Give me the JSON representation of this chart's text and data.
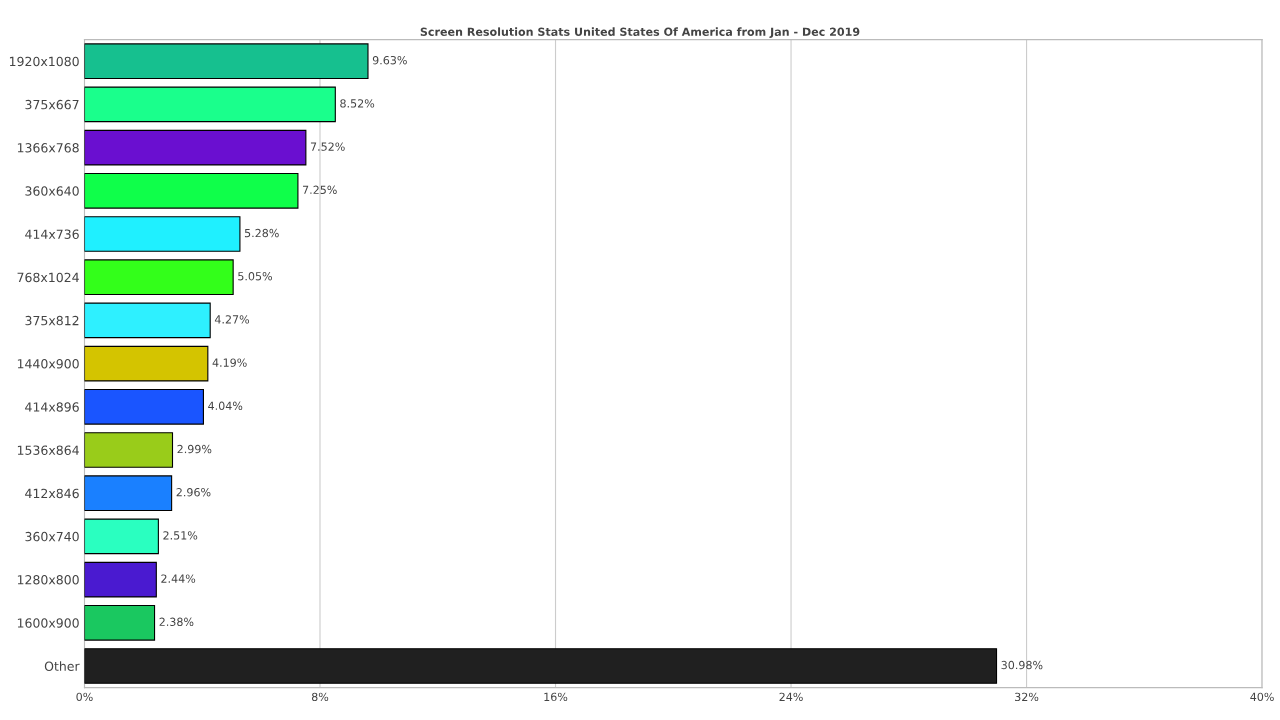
{
  "chart_data": {
    "type": "bar",
    "orientation": "horizontal",
    "subtitle": "Screen Resolution Stats United States Of America from Jan - Dec 2019",
    "categories": [
      "1920x1080",
      "375x667",
      "1366x768",
      "360x640",
      "414x736",
      "768x1024",
      "375x812",
      "1440x900",
      "414x896",
      "1536x864",
      "412x846",
      "360x740",
      "1280x800",
      "1600x900",
      "Other"
    ],
    "values": [
      9.63,
      8.52,
      7.52,
      7.25,
      5.28,
      5.05,
      4.27,
      4.19,
      4.04,
      2.99,
      2.96,
      2.51,
      2.44,
      2.38,
      30.98
    ],
    "value_labels": [
      "9.63%",
      "8.52%",
      "7.52%",
      "7.25%",
      "5.28%",
      "5.05%",
      "4.27%",
      "4.19%",
      "4.04%",
      "2.99%",
      "2.96%",
      "2.51%",
      "2.44%",
      "2.38%",
      "30.98%"
    ],
    "colors": [
      "#16c08f",
      "#1aff8c",
      "#6a0fd0",
      "#0fff4a",
      "#1ff0ff",
      "#33ff1a",
      "#2ef0ff",
      "#d4c400",
      "#1a55ff",
      "#99cc1a",
      "#1a80ff",
      "#2affc0",
      "#4a1ad0",
      "#1ac860",
      "#202020"
    ],
    "xlim": [
      0,
      40
    ],
    "xticks": [
      {
        "value": 0,
        "label": "0%"
      },
      {
        "value": 8,
        "label": "8%"
      },
      {
        "value": 16,
        "label": "16%"
      },
      {
        "value": 24,
        "label": "24%"
      },
      {
        "value": 32,
        "label": "32%"
      },
      {
        "value": 40,
        "label": "40%"
      }
    ],
    "grid": "x",
    "legend": false
  }
}
